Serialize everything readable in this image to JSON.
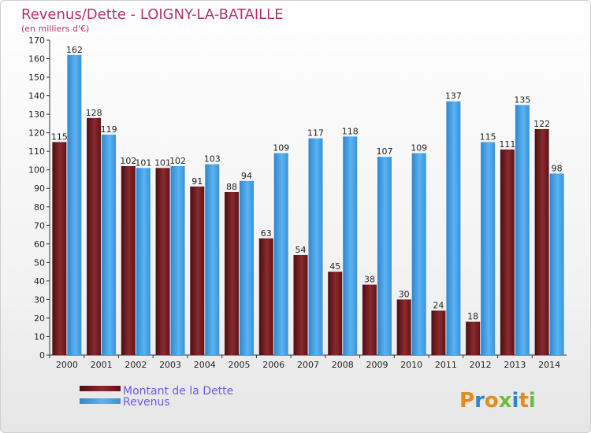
{
  "chart_data": {
    "type": "bar",
    "title": "Revenus/Dette - LOIGNY-LA-BATAILLE",
    "subtitle": "(en milliers d'€)",
    "categories": [
      "2000",
      "2001",
      "2002",
      "2003",
      "2004",
      "2005",
      "2006",
      "2007",
      "2008",
      "2009",
      "2010",
      "2011",
      "2012",
      "2013",
      "2014"
    ],
    "series": [
      {
        "name": "Montant de la Dette",
        "color": "#7a1f24",
        "values": [
          115,
          128,
          102,
          101,
          91,
          88,
          63,
          54,
          45,
          38,
          30,
          24,
          18,
          111,
          122
        ]
      },
      {
        "name": "Revenus",
        "color": "#3d9ee6",
        "values": [
          162,
          119,
          101,
          102,
          103,
          94,
          109,
          117,
          118,
          107,
          109,
          137,
          115,
          135,
          98
        ]
      }
    ],
    "ylim": [
      0,
      170
    ],
    "ytick_step": 10,
    "grid": false,
    "legend_position": "bottom-left"
  },
  "logo": {
    "text": "Proxiti"
  }
}
